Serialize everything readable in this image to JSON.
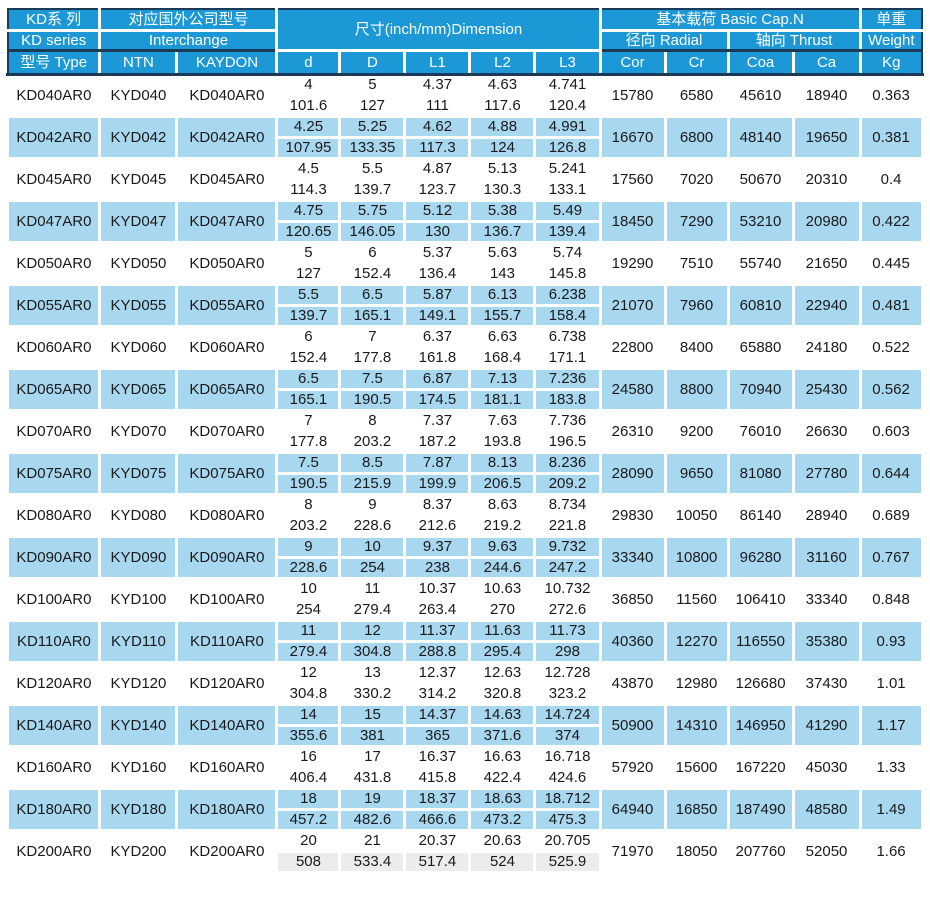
{
  "header": {
    "series_top": "KD系 列",
    "series_mid": "KD series",
    "series_bottom": "型号 Type",
    "interchange_top": "对应国外公司型号",
    "interchange_mid": "Interchange",
    "interchange_cols": [
      "NTN",
      "KAYDON"
    ],
    "dimension_title": "尺寸(inch/mm)Dimension",
    "dimension_cols": [
      "d",
      "D",
      "L1",
      "L2",
      "L3"
    ],
    "capacity_title": "基本载荷 Basic Cap.N",
    "radial_label": "径向 Radial",
    "thrust_label": "轴向 Thrust",
    "capacity_cols": [
      "Cor",
      "Cr",
      "Coa",
      "Ca"
    ],
    "weight_top": "单重",
    "weight_mid": "Weight",
    "weight_unit": "Kg"
  },
  "rows": [
    {
      "type": "KD040AR0",
      "ntn": "KYD040",
      "kaydon": "KD040AR0",
      "inch": [
        "4",
        "5",
        "4.37",
        "4.63",
        "4.741"
      ],
      "mm": [
        "101.6",
        "127",
        "111",
        "117.6",
        "120.4"
      ],
      "loads": [
        "15780",
        "6580",
        "45610",
        "18940"
      ],
      "kg": "0.363"
    },
    {
      "type": "KD042AR0",
      "ntn": "KYD042",
      "kaydon": "KD042AR0",
      "inch": [
        "4.25",
        "5.25",
        "4.62",
        "4.88",
        "4.991"
      ],
      "mm": [
        "107.95",
        "133.35",
        "117.3",
        "124",
        "126.8"
      ],
      "loads": [
        "16670",
        "6800",
        "48140",
        "19650"
      ],
      "kg": "0.381"
    },
    {
      "type": "KD045AR0",
      "ntn": "KYD045",
      "kaydon": "KD045AR0",
      "inch": [
        "4.5",
        "5.5",
        "4.87",
        "5.13",
        "5.241"
      ],
      "mm": [
        "114.3",
        "139.7",
        "123.7",
        "130.3",
        "133.1"
      ],
      "loads": [
        "17560",
        "7020",
        "50670",
        "20310"
      ],
      "kg": "0.4"
    },
    {
      "type": "KD047AR0",
      "ntn": "KYD047",
      "kaydon": "KD047AR0",
      "inch": [
        "4.75",
        "5.75",
        "5.12",
        "5.38",
        "5.49"
      ],
      "mm": [
        "120.65",
        "146.05",
        "130",
        "136.7",
        "139.4"
      ],
      "loads": [
        "18450",
        "7290",
        "53210",
        "20980"
      ],
      "kg": "0.422"
    },
    {
      "type": "KD050AR0",
      "ntn": "KYD050",
      "kaydon": "KD050AR0",
      "inch": [
        "5",
        "6",
        "5.37",
        "5.63",
        "5.74"
      ],
      "mm": [
        "127",
        "152.4",
        "136.4",
        "143",
        "145.8"
      ],
      "loads": [
        "19290",
        "7510",
        "55740",
        "21650"
      ],
      "kg": "0.445"
    },
    {
      "type": "KD055AR0",
      "ntn": "KYD055",
      "kaydon": "KD055AR0",
      "inch": [
        "5.5",
        "6.5",
        "5.87",
        "6.13",
        "6.238"
      ],
      "mm": [
        "139.7",
        "165.1",
        "149.1",
        "155.7",
        "158.4"
      ],
      "loads": [
        "21070",
        "7960",
        "60810",
        "22940"
      ],
      "kg": "0.481"
    },
    {
      "type": "KD060AR0",
      "ntn": "KYD060",
      "kaydon": "KD060AR0",
      "inch": [
        "6",
        "7",
        "6.37",
        "6.63",
        "6.738"
      ],
      "mm": [
        "152.4",
        "177.8",
        "161.8",
        "168.4",
        "171.1"
      ],
      "loads": [
        "22800",
        "8400",
        "65880",
        "24180"
      ],
      "kg": "0.522"
    },
    {
      "type": "KD065AR0",
      "ntn": "KYD065",
      "kaydon": "KD065AR0",
      "inch": [
        "6.5",
        "7.5",
        "6.87",
        "7.13",
        "7.236"
      ],
      "mm": [
        "165.1",
        "190.5",
        "174.5",
        "181.1",
        "183.8"
      ],
      "loads": [
        "24580",
        "8800",
        "70940",
        "25430"
      ],
      "kg": "0.562"
    },
    {
      "type": "KD070AR0",
      "ntn": "KYD070",
      "kaydon": "KD070AR0",
      "inch": [
        "7",
        "8",
        "7.37",
        "7.63",
        "7.736"
      ],
      "mm": [
        "177.8",
        "203.2",
        "187.2",
        "193.8",
        "196.5"
      ],
      "loads": [
        "26310",
        "9200",
        "76010",
        "26630"
      ],
      "kg": "0.603"
    },
    {
      "type": "KD075AR0",
      "ntn": "KYD075",
      "kaydon": "KD075AR0",
      "inch": [
        "7.5",
        "8.5",
        "7.87",
        "8.13",
        "8.236"
      ],
      "mm": [
        "190.5",
        "215.9",
        "199.9",
        "206.5",
        "209.2"
      ],
      "loads": [
        "28090",
        "9650",
        "81080",
        "27780"
      ],
      "kg": "0.644"
    },
    {
      "type": "KD080AR0",
      "ntn": "KYD080",
      "kaydon": "KD080AR0",
      "inch": [
        "8",
        "9",
        "8.37",
        "8.63",
        "8.734"
      ],
      "mm": [
        "203.2",
        "228.6",
        "212.6",
        "219.2",
        "221.8"
      ],
      "loads": [
        "29830",
        "10050",
        "86140",
        "28940"
      ],
      "kg": "0.689"
    },
    {
      "type": "KD090AR0",
      "ntn": "KYD090",
      "kaydon": "KD090AR0",
      "inch": [
        "9",
        "10",
        "9.37",
        "9.63",
        "9.732"
      ],
      "mm": [
        "228.6",
        "254",
        "238",
        "244.6",
        "247.2"
      ],
      "loads": [
        "33340",
        "10800",
        "96280",
        "31160"
      ],
      "kg": "0.767"
    },
    {
      "type": "KD100AR0",
      "ntn": "KYD100",
      "kaydon": "KD100AR0",
      "inch": [
        "10",
        "11",
        "10.37",
        "10.63",
        "10.732"
      ],
      "mm": [
        "254",
        "279.4",
        "263.4",
        "270",
        "272.6"
      ],
      "loads": [
        "36850",
        "11560",
        "106410",
        "33340"
      ],
      "kg": "0.848"
    },
    {
      "type": "KD110AR0",
      "ntn": "KYD110",
      "kaydon": "KD110AR0",
      "inch": [
        "11",
        "12",
        "11.37",
        "11.63",
        "11.73"
      ],
      "mm": [
        "279.4",
        "304.8",
        "288.8",
        "295.4",
        "298"
      ],
      "loads": [
        "40360",
        "12270",
        "116550",
        "35380"
      ],
      "kg": "0.93"
    },
    {
      "type": "KD120AR0",
      "ntn": "KYD120",
      "kaydon": "KD120AR0",
      "inch": [
        "12",
        "13",
        "12.37",
        "12.63",
        "12.728"
      ],
      "mm": [
        "304.8",
        "330.2",
        "314.2",
        "320.8",
        "323.2"
      ],
      "loads": [
        "43870",
        "12980",
        "126680",
        "37430"
      ],
      "kg": "1.01"
    },
    {
      "type": "KD140AR0",
      "ntn": "KYD140",
      "kaydon": "KD140AR0",
      "inch": [
        "14",
        "15",
        "14.37",
        "14.63",
        "14.724"
      ],
      "mm": [
        "355.6",
        "381",
        "365",
        "371.6",
        "374"
      ],
      "loads": [
        "50900",
        "14310",
        "146950",
        "41290"
      ],
      "kg": "1.17"
    },
    {
      "type": "KD160AR0",
      "ntn": "KYD160",
      "kaydon": "KD160AR0",
      "inch": [
        "16",
        "17",
        "16.37",
        "16.63",
        "16.718"
      ],
      "mm": [
        "406.4",
        "431.8",
        "415.8",
        "422.4",
        "424.6"
      ],
      "loads": [
        "57920",
        "15600",
        "167220",
        "45030"
      ],
      "kg": "1.33"
    },
    {
      "type": "KD180AR0",
      "ntn": "KYD180",
      "kaydon": "KD180AR0",
      "inch": [
        "18",
        "19",
        "18.37",
        "18.63",
        "18.712"
      ],
      "mm": [
        "457.2",
        "482.6",
        "466.6",
        "473.2",
        "475.3"
      ],
      "loads": [
        "64940",
        "16850",
        "187490",
        "48580"
      ],
      "kg": "1.49"
    },
    {
      "type": "KD200AR0",
      "ntn": "KYD200",
      "kaydon": "KD200AR0",
      "inch": [
        "20",
        "21",
        "20.37",
        "20.63",
        "20.705"
      ],
      "mm": [
        "508",
        "533.4",
        "517.4",
        "524",
        "525.9"
      ],
      "loads": [
        "71970",
        "18050",
        "207760",
        "52050"
      ],
      "kg": "1.66"
    }
  ],
  "colors": {
    "header_blue": "#1b98d5",
    "row_blue": "#a8d7f0",
    "dark_line": "#1a3a57",
    "last_row_gray": "#ececec"
  }
}
